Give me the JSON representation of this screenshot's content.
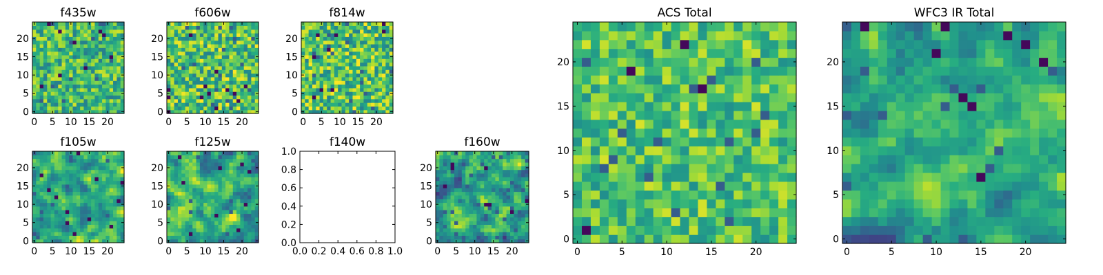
{
  "colors": {
    "colormap": "viridis",
    "axes_edge": "#000000",
    "background": "#ffffff"
  },
  "chart_data": [
    {
      "type": "heatmap",
      "title": "f435w",
      "grid": false,
      "xlim": [
        -0.5,
        24.5
      ],
      "ylim": [
        -0.5,
        24.5
      ],
      "xticks": [
        "0",
        "5",
        "10",
        "15",
        "20"
      ],
      "yticks": [
        "0",
        "5",
        "10",
        "15",
        "20"
      ],
      "nx": 25,
      "ny": 25,
      "seed": 11,
      "smooth": 0,
      "baseline": 0.68,
      "spread": 0.16
    },
    {
      "type": "heatmap",
      "title": "f606w",
      "grid": false,
      "xlim": [
        -0.5,
        24.5
      ],
      "ylim": [
        -0.5,
        24.5
      ],
      "xticks": [
        "0",
        "5",
        "10",
        "15",
        "20"
      ],
      "yticks": [
        "0",
        "5",
        "10",
        "15",
        "20"
      ],
      "nx": 25,
      "ny": 25,
      "seed": 23,
      "smooth": 0,
      "baseline": 0.72,
      "spread": 0.18
    },
    {
      "type": "heatmap",
      "title": "f814w",
      "grid": false,
      "xlim": [
        -0.5,
        24.5
      ],
      "ylim": [
        -0.5,
        24.5
      ],
      "xticks": [
        "0",
        "5",
        "10",
        "15",
        "20"
      ],
      "yticks": [
        "0",
        "5",
        "10",
        "15",
        "20"
      ],
      "nx": 25,
      "ny": 25,
      "seed": 37,
      "smooth": 0,
      "baseline": 0.72,
      "spread": 0.18
    },
    {
      "type": "heatmap",
      "title": "f105w",
      "grid": false,
      "xlim": [
        -0.5,
        24.5
      ],
      "ylim": [
        -0.5,
        24.5
      ],
      "xticks": [
        "0",
        "5",
        "10",
        "15",
        "20"
      ],
      "yticks": [
        "0",
        "5",
        "10",
        "15",
        "20"
      ],
      "nx": 25,
      "ny": 25,
      "seed": 41,
      "smooth": 1,
      "baseline": 0.62,
      "spread": 0.2
    },
    {
      "type": "heatmap",
      "title": "f125w",
      "grid": false,
      "xlim": [
        -0.5,
        24.5
      ],
      "ylim": [
        -0.5,
        24.5
      ],
      "xticks": [
        "0",
        "5",
        "10",
        "15",
        "20"
      ],
      "yticks": [
        "0",
        "5",
        "10",
        "15",
        "20"
      ],
      "nx": 25,
      "ny": 25,
      "seed": 53,
      "smooth": 1,
      "baseline": 0.64,
      "spread": 0.2
    },
    {
      "type": "empty",
      "title": "f140w",
      "grid": false,
      "xlim": [
        0.0,
        1.0
      ],
      "ylim": [
        0.0,
        1.0
      ],
      "xticks": [
        "0.0",
        "0.2",
        "0.4",
        "0.6",
        "0.8",
        "1.0"
      ],
      "yticks": [
        "0.0",
        "0.2",
        "0.4",
        "0.6",
        "0.8",
        "1.0"
      ]
    },
    {
      "type": "heatmap",
      "title": "f160w",
      "grid": false,
      "xlim": [
        -0.5,
        24.5
      ],
      "ylim": [
        -0.5,
        24.5
      ],
      "xticks": [
        "0",
        "5",
        "10",
        "15",
        "20"
      ],
      "yticks": [
        "0",
        "5",
        "10",
        "15",
        "20"
      ],
      "nx": 25,
      "ny": 25,
      "seed": 67,
      "smooth": 1,
      "baseline": 0.6,
      "spread": 0.22
    },
    {
      "type": "heatmap",
      "title": "ACS Total",
      "grid": false,
      "xlim": [
        -0.5,
        24.5
      ],
      "ylim": [
        -0.5,
        24.5
      ],
      "xticks": [
        "0",
        "5",
        "10",
        "15",
        "20"
      ],
      "yticks": [
        "0",
        "5",
        "10",
        "15",
        "20"
      ],
      "nx": 25,
      "ny": 25,
      "seed": 79,
      "smooth": 0,
      "baseline": 0.72,
      "spread": 0.14
    },
    {
      "type": "heatmap",
      "title": "WFC3 IR Total",
      "grid": false,
      "xlim": [
        -0.5,
        24.5
      ],
      "ylim": [
        -0.5,
        24.5
      ],
      "xticks": [
        "0",
        "5",
        "10",
        "15",
        "20"
      ],
      "yticks": [
        "0",
        "5",
        "10",
        "15",
        "20"
      ],
      "nx": 25,
      "ny": 25,
      "seed": 97,
      "smooth": 1,
      "baseline": 0.6,
      "spread": 0.16
    }
  ]
}
